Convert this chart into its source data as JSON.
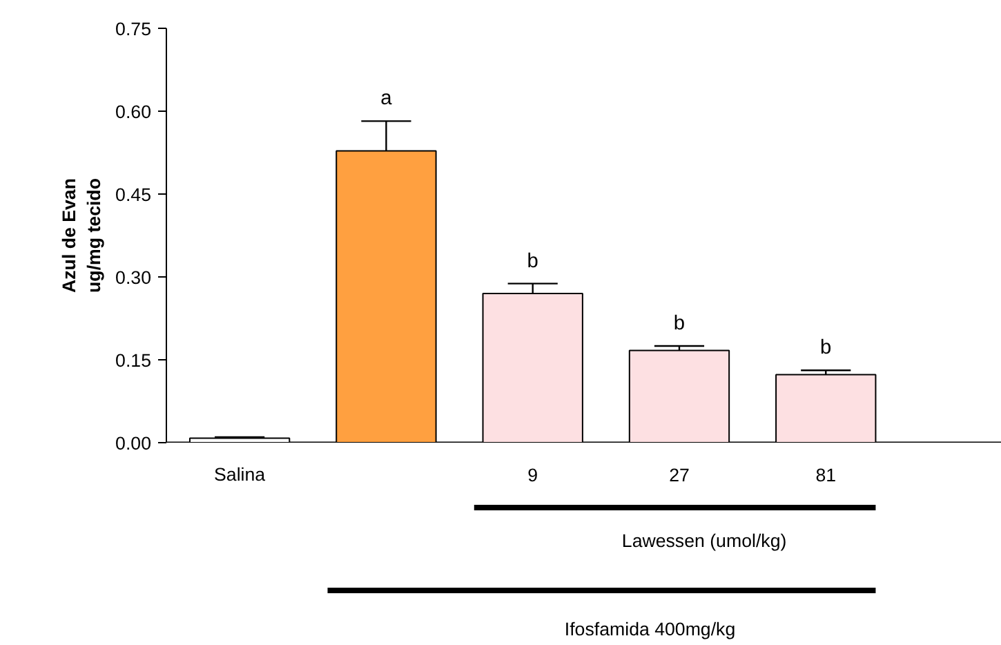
{
  "chart_data": {
    "type": "bar",
    "ylabel": "Azul de Evan\nug/mg tecido",
    "categories": [
      "Salina",
      null,
      "9",
      "27",
      "81"
    ],
    "values": [
      0.008,
      0.528,
      0.27,
      0.167,
      0.123
    ],
    "colors": [
      "#ffffff",
      "#ffa040",
      "#fde0e2",
      "#fde0e2",
      "#fde0e2"
    ],
    "errors": [
      0.002,
      0.054,
      0.018,
      0.008,
      0.008
    ],
    "value_labels": [
      null,
      "a",
      "b",
      "b",
      "b"
    ],
    "ylim": [
      0,
      0.75
    ],
    "yticks": [
      {
        "value": 0,
        "label": "0.00"
      },
      {
        "value": 0.15,
        "label": "0.15"
      },
      {
        "value": 0.3,
        "label": "0.30"
      },
      {
        "value": 0.45,
        "label": "0.45"
      },
      {
        "value": 0.6,
        "label": "0.60"
      },
      {
        "value": 0.75,
        "label": "0.75"
      }
    ],
    "annotations": [
      "Lawessen (umol/kg)",
      "Ifosfamida 400mg/kg"
    ],
    "grid": false
  }
}
